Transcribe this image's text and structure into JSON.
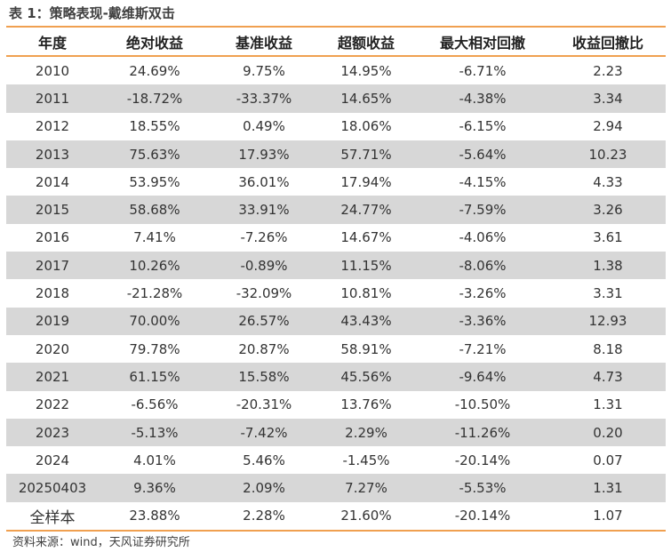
{
  "title": "表 1：策略表现-戴维斯双击",
  "headers": [
    "年度",
    "绝对收益",
    "基准收益",
    "超额收益",
    "最大相对回撤",
    "收益回撤比"
  ],
  "rows": [
    [
      "2010",
      "24.69%",
      "9.75%",
      "14.95%",
      "-6.71%",
      "2.23"
    ],
    [
      "2011",
      "-18.72%",
      "-33.37%",
      "14.65%",
      "-4.38%",
      "3.34"
    ],
    [
      "2012",
      "18.55%",
      "0.49%",
      "18.06%",
      "-6.15%",
      "2.94"
    ],
    [
      "2013",
      "75.63%",
      "17.93%",
      "57.71%",
      "-5.64%",
      "10.23"
    ],
    [
      "2014",
      "53.95%",
      "36.01%",
      "17.94%",
      "-4.15%",
      "4.33"
    ],
    [
      "2015",
      "58.68%",
      "33.91%",
      "24.77%",
      "-7.59%",
      "3.26"
    ],
    [
      "2016",
      "7.41%",
      "-7.26%",
      "14.67%",
      "-4.06%",
      "3.61"
    ],
    [
      "2017",
      "10.26%",
      "-0.89%",
      "11.15%",
      "-8.06%",
      "1.38"
    ],
    [
      "2018",
      "-21.28%",
      "-32.09%",
      "10.81%",
      "-3.26%",
      "3.31"
    ],
    [
      "2019",
      "70.00%",
      "26.57%",
      "43.43%",
      "-3.36%",
      "12.93"
    ],
    [
      "2020",
      "79.78%",
      "20.87%",
      "58.91%",
      "-7.21%",
      "8.18"
    ],
    [
      "2021",
      "61.15%",
      "15.58%",
      "45.56%",
      "-9.64%",
      "4.73"
    ],
    [
      "2022",
      "-6.56%",
      "-20.31%",
      "13.76%",
      "-10.50%",
      "1.31"
    ],
    [
      "2023",
      "-5.13%",
      "-7.42%",
      "2.29%",
      "-11.26%",
      "0.20"
    ],
    [
      "2024",
      "4.01%",
      "5.46%",
      "-1.45%",
      "-20.14%",
      "0.07"
    ],
    [
      "20250403",
      "9.36%",
      "2.09%",
      "7.27%",
      "-5.53%",
      "1.31"
    ],
    [
      "全样本",
      "23.88%",
      "2.28%",
      "21.60%",
      "-20.14%",
      "1.07"
    ]
  ],
  "source": "资料来源：wind，天风证券研究所",
  "colors": {
    "accent_line": "#f0a050",
    "shade_row": "#d7d7d7"
  }
}
